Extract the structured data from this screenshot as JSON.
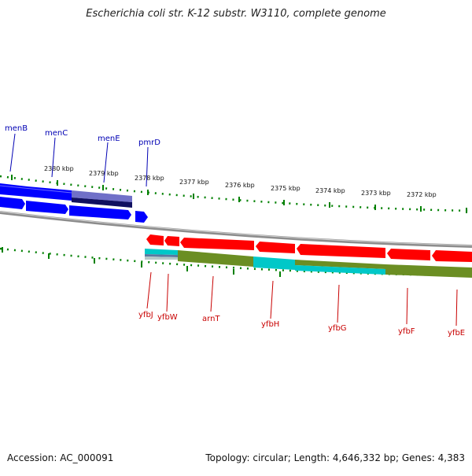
{
  "title": "Escherichia coli str. K-12 substr. W3110, complete genome",
  "footer": {
    "accession": "Accession: AC_000091",
    "summary": "Topology: circular; Length: 4,646,332 bp; Genes: 4,383"
  },
  "scale": {
    "ticks": [
      {
        "label": "2380 kbp"
      },
      {
        "label": "2379 kbp"
      },
      {
        "label": "2378 kbp"
      },
      {
        "label": "2377 kbp"
      },
      {
        "label": "2376 kbp"
      },
      {
        "label": "2375 kbp"
      },
      {
        "label": "2374 kbp"
      },
      {
        "label": "2373 kbp"
      },
      {
        "label": "2372 kbp"
      }
    ]
  },
  "colors": {
    "forward_gene": "#0000ff",
    "reverse_gene": "#ff0000",
    "cds": "#6b8e23",
    "rna": "#00c8c8",
    "tick": "#008000",
    "backbone": "#8c8c8c"
  },
  "genes_forward": [
    {
      "name": "menB"
    },
    {
      "name": "menC"
    },
    {
      "name": "menE"
    },
    {
      "name": "pmrD"
    }
  ],
  "genes_reverse": [
    {
      "name": "yfbJ"
    },
    {
      "name": "yfbW"
    },
    {
      "name": "arnT"
    },
    {
      "name": "yfbH"
    },
    {
      "name": "yfbG"
    },
    {
      "name": "yfbF"
    },
    {
      "name": "yfbE"
    }
  ]
}
